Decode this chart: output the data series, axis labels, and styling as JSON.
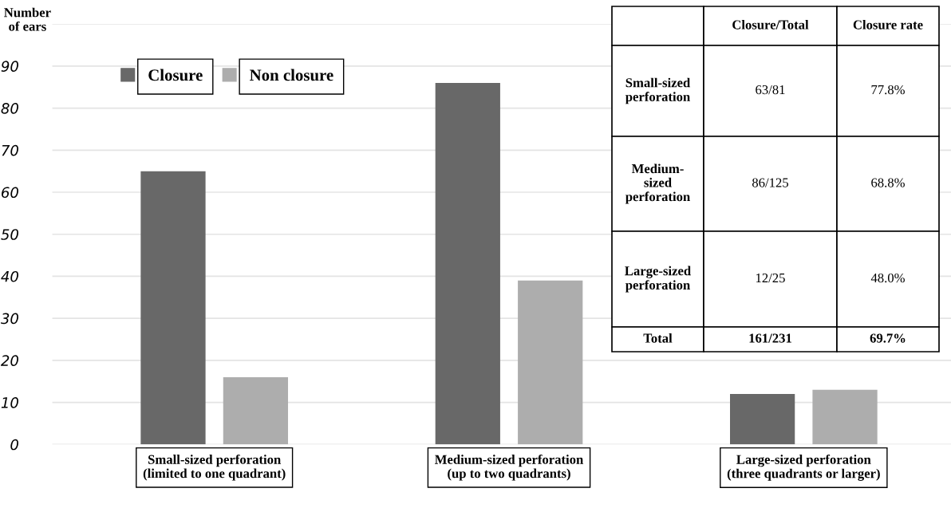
{
  "chart_data": {
    "type": "bar",
    "ylabel": "Number\nof ears",
    "categories": [
      "Small-sized perforation\n(limited to one quadrant)",
      "Medium-sized perforation\n(up to two quadrants)",
      "Large-sized perforation\n(three quadrants or larger)"
    ],
    "series": [
      {
        "name": "Closure",
        "color": "#686868",
        "values": [
          65,
          86,
          12
        ]
      },
      {
        "name": "Non closure",
        "color": "#adadad",
        "values": [
          16,
          39,
          13
        ]
      }
    ],
    "ylim": [
      0,
      100
    ],
    "yticks": [
      0,
      10,
      20,
      30,
      40,
      50,
      60,
      70,
      80,
      90,
      {
        "value": 100,
        "label": null
      }
    ],
    "grid": "y",
    "legend": "top left",
    "annotations": [
      "Closure/Total",
      "Closure rate",
      "Small-sized\nperforation",
      "63/81",
      "77.8%",
      "Medium-\nsized\nperforation",
      "86/125",
      "68.8%",
      "Large-sized\nperforation",
      "12/25",
      "48.0%",
      "Total",
      "161/231",
      "69.7%"
    ]
  }
}
